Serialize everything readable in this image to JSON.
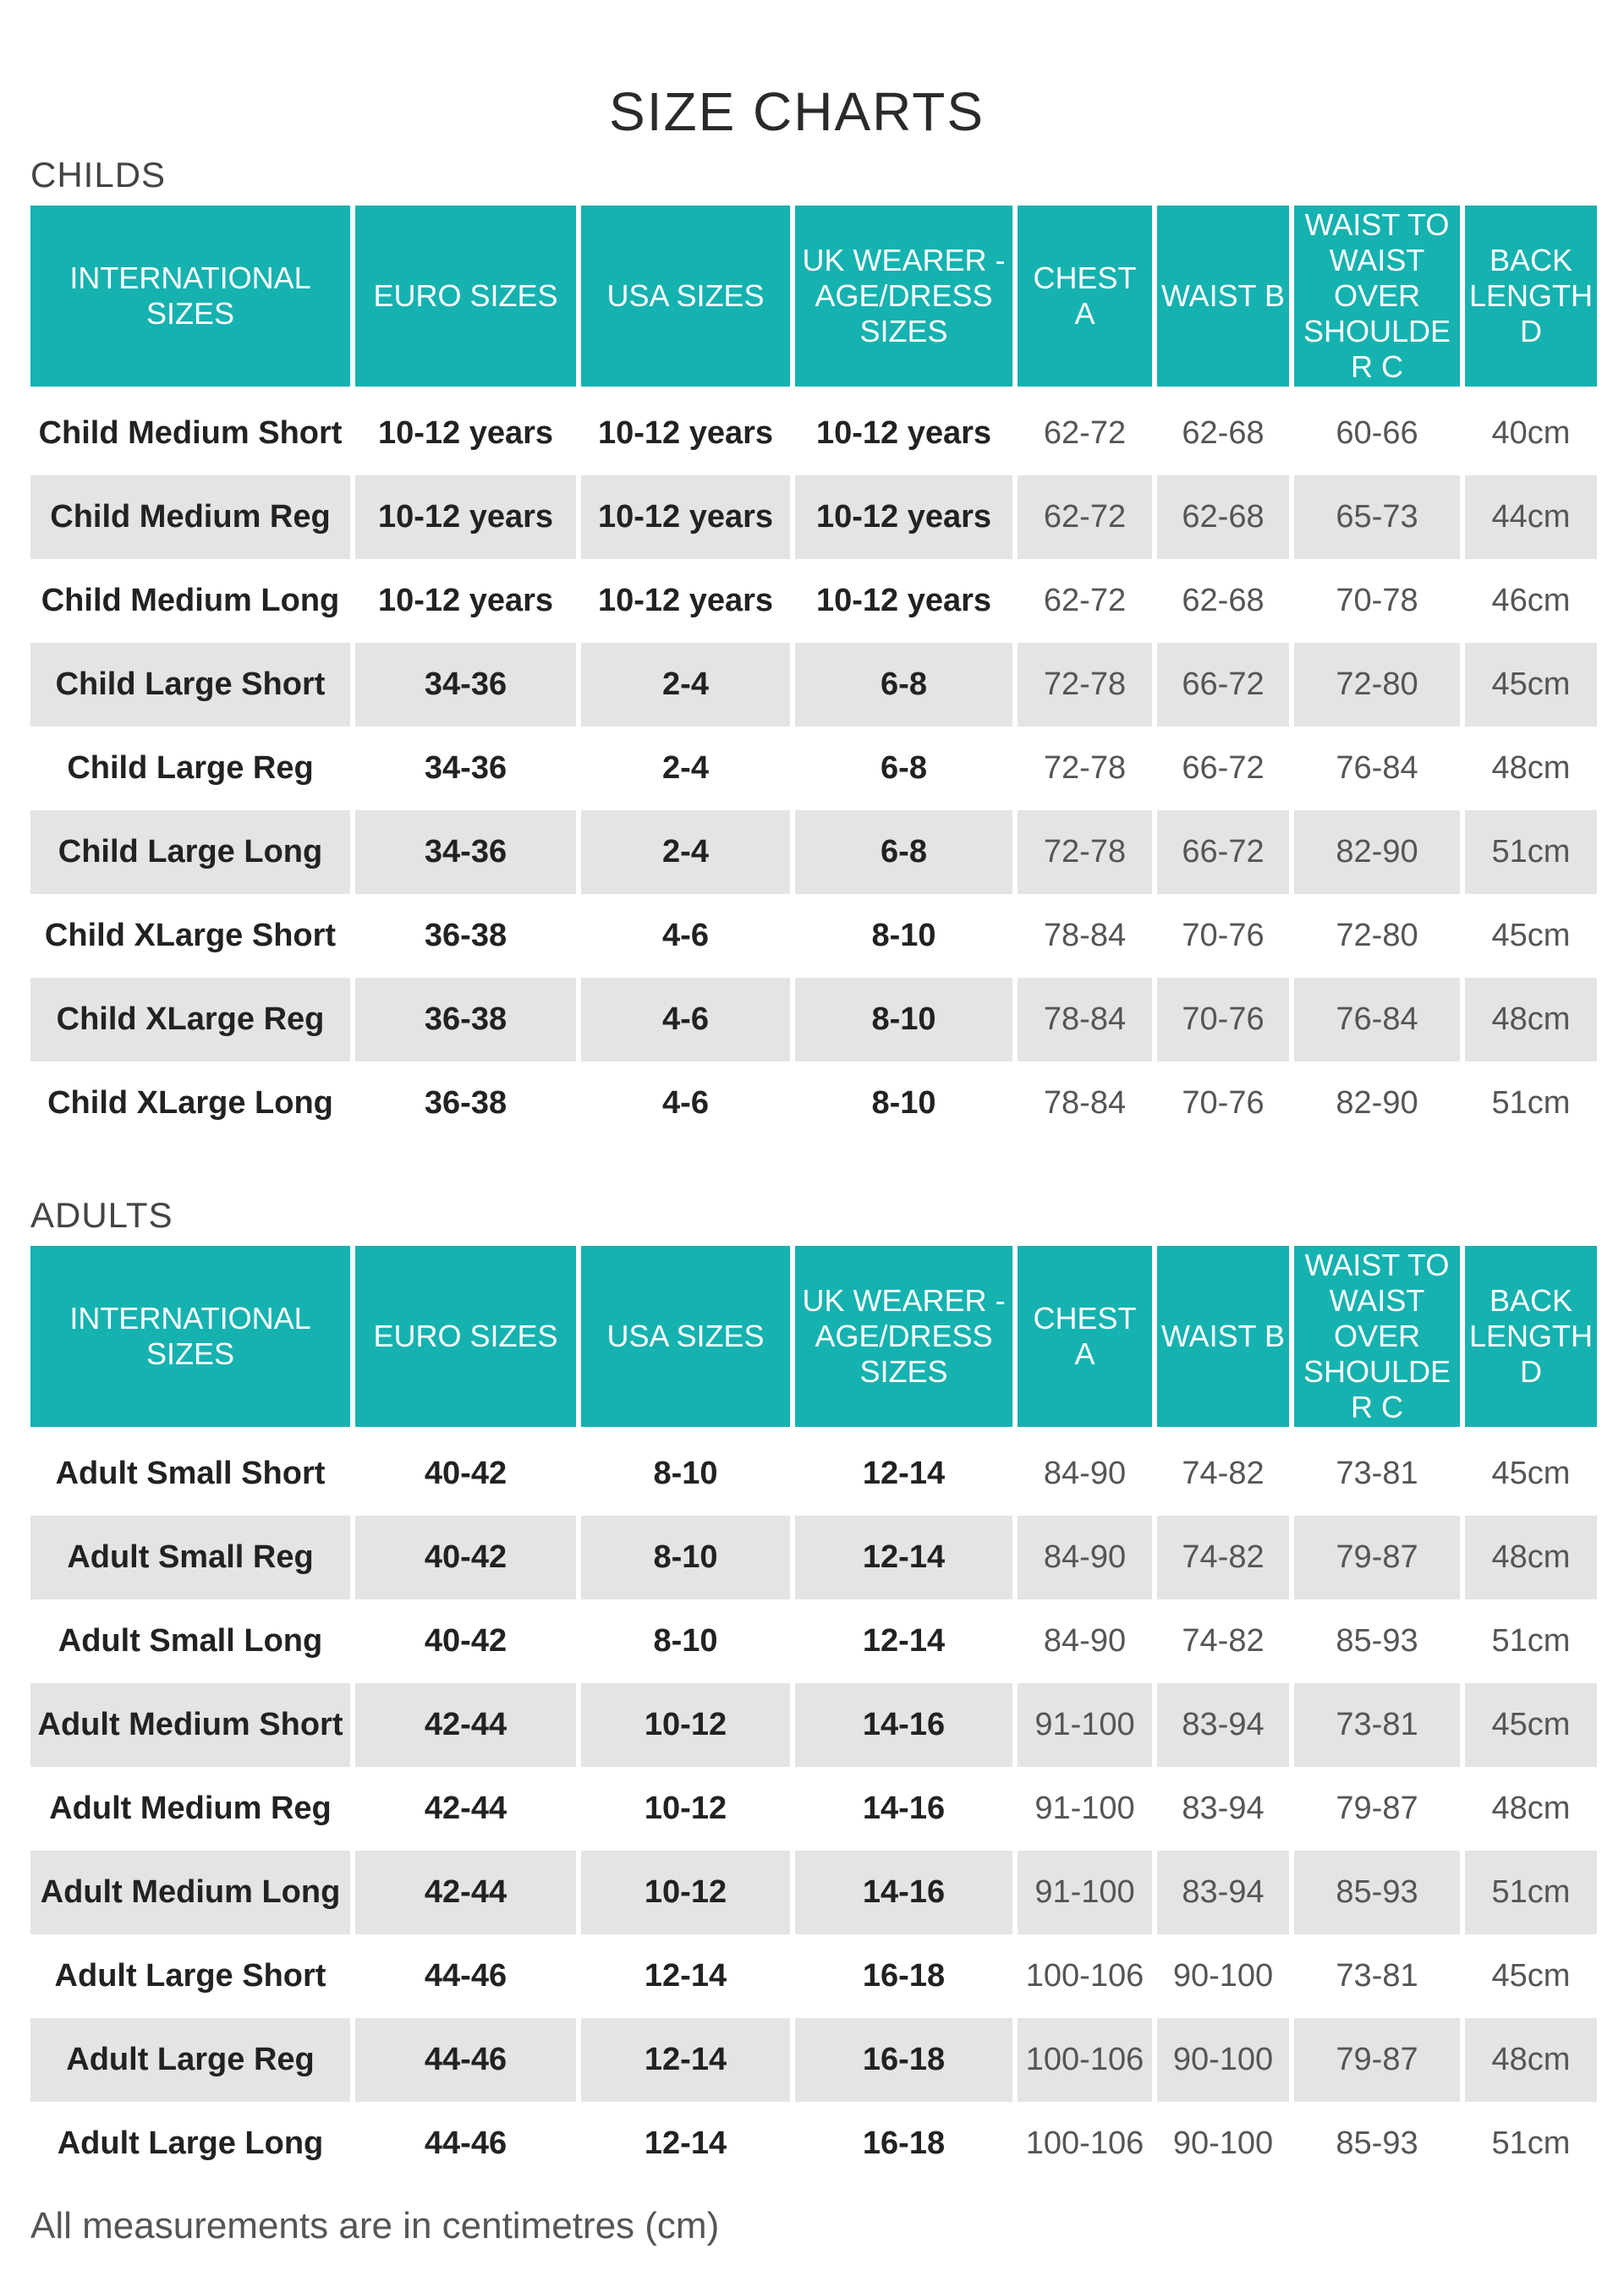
{
  "title": "SIZE CHARTS",
  "footnote": "All measurements are in centimetres (cm)",
  "colors": {
    "header_bg": "#16b2b0",
    "row_alt_bg": "#e4e4e4"
  },
  "childs": {
    "section_label": "CHILDS",
    "headers": [
      "INTERNATIONAL SIZES",
      "EURO SIZES",
      "USA SIZES",
      "UK WEARER - AGE/DRESS SIZES",
      "CHEST A",
      "WAIST B",
      "WAIST TO WAIST OVER SHOULDER C",
      "BACK LENGTH D"
    ],
    "rows": [
      [
        "Child Medium Short",
        "10-12 years",
        "10-12 years",
        "10-12 years",
        "62-72",
        "62-68",
        "60-66",
        "40cm"
      ],
      [
        "Child Medium Reg",
        "10-12 years",
        "10-12 years",
        "10-12 years",
        "62-72",
        "62-68",
        "65-73",
        "44cm"
      ],
      [
        "Child Medium Long",
        "10-12 years",
        "10-12 years",
        "10-12 years",
        "62-72",
        "62-68",
        "70-78",
        "46cm"
      ],
      [
        "Child Large Short",
        "34-36",
        "2-4",
        "6-8",
        "72-78",
        "66-72",
        "72-80",
        "45cm"
      ],
      [
        "Child Large Reg",
        "34-36",
        "2-4",
        "6-8",
        "72-78",
        "66-72",
        "76-84",
        "48cm"
      ],
      [
        "Child Large Long",
        "34-36",
        "2-4",
        "6-8",
        "72-78",
        "66-72",
        "82-90",
        "51cm"
      ],
      [
        "Child XLarge Short",
        "36-38",
        "4-6",
        "8-10",
        "78-84",
        "70-76",
        "72-80",
        "45cm"
      ],
      [
        "Child XLarge Reg",
        "36-38",
        "4-6",
        "8-10",
        "78-84",
        "70-76",
        "76-84",
        "48cm"
      ],
      [
        "Child XLarge Long",
        "36-38",
        "4-6",
        "8-10",
        "78-84",
        "70-76",
        "82-90",
        "51cm"
      ]
    ]
  },
  "adults": {
    "section_label": "ADULTS",
    "headers": [
      "INTERNATIONAL SIZES",
      "EURO SIZES",
      "USA SIZES",
      "UK WEARER - AGE/DRESS SIZES",
      "CHEST A",
      "WAIST B",
      "WAIST TO WAIST OVER SHOULDER C",
      "BACK LENGTH D"
    ],
    "rows": [
      [
        "Adult Small Short",
        "40-42",
        "8-10",
        "12-14",
        "84-90",
        "74-82",
        "73-81",
        "45cm"
      ],
      [
        "Adult Small Reg",
        "40-42",
        "8-10",
        "12-14",
        "84-90",
        "74-82",
        "79-87",
        "48cm"
      ],
      [
        "Adult Small Long",
        "40-42",
        "8-10",
        "12-14",
        "84-90",
        "74-82",
        "85-93",
        "51cm"
      ],
      [
        "Adult Medium Short",
        "42-44",
        "10-12",
        "14-16",
        "91-100",
        "83-94",
        "73-81",
        "45cm"
      ],
      [
        "Adult Medium Reg",
        "42-44",
        "10-12",
        "14-16",
        "91-100",
        "83-94",
        "79-87",
        "48cm"
      ],
      [
        "Adult Medium Long",
        "42-44",
        "10-12",
        "14-16",
        "91-100",
        "83-94",
        "85-93",
        "51cm"
      ],
      [
        "Adult Large Short",
        "44-46",
        "12-14",
        "16-18",
        "100-106",
        "90-100",
        "73-81",
        "45cm"
      ],
      [
        "Adult Large Reg",
        "44-46",
        "12-14",
        "16-18",
        "100-106",
        "90-100",
        "79-87",
        "48cm"
      ],
      [
        "Adult Large Long",
        "44-46",
        "12-14",
        "16-18",
        "100-106",
        "90-100",
        "85-93",
        "51cm"
      ]
    ]
  }
}
